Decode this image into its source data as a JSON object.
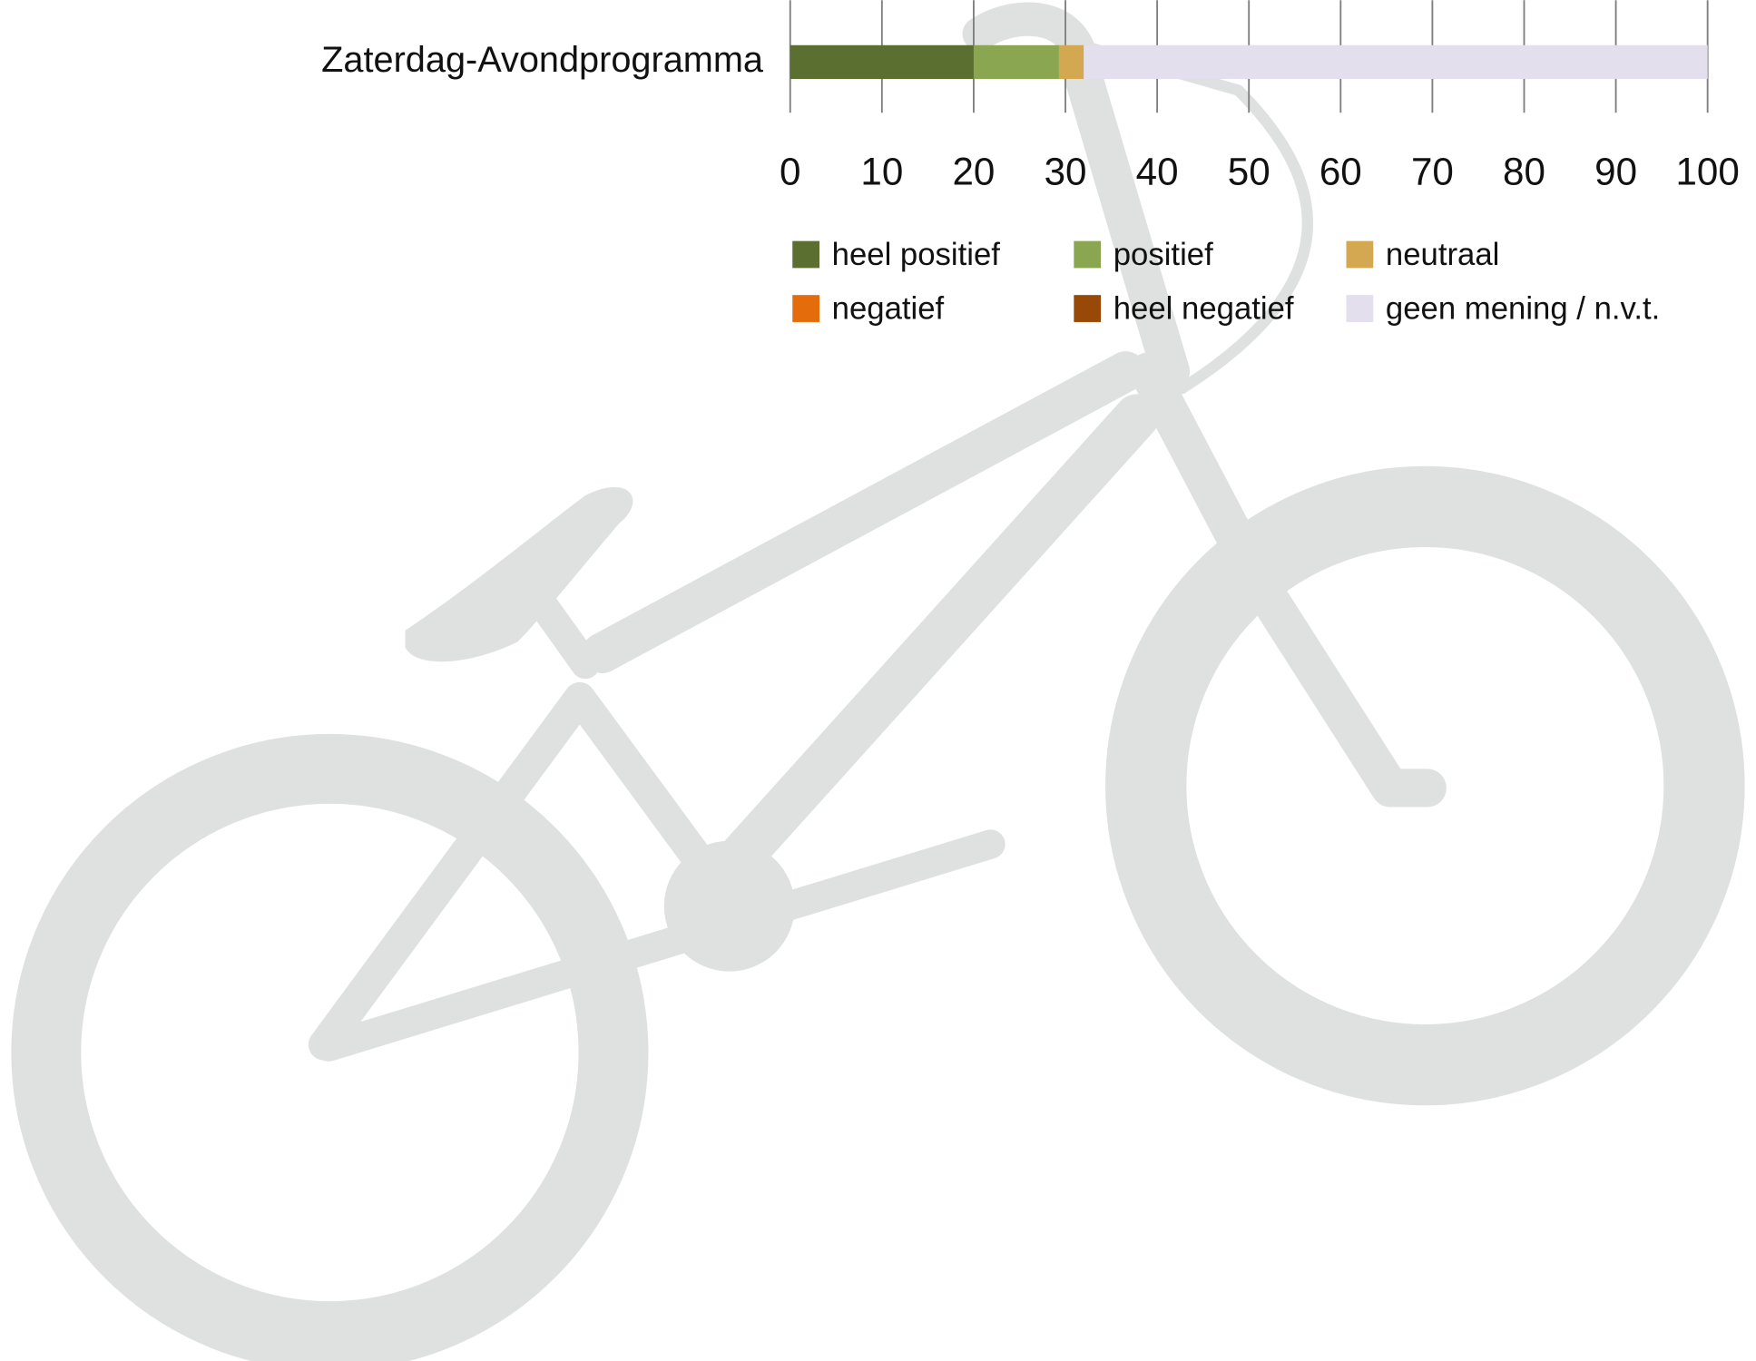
{
  "chart_data": {
    "type": "bar",
    "orientation": "horizontal",
    "stacked": true,
    "categories": [
      "Zaterdag-Avondprogramma"
    ],
    "series": [
      {
        "name": "heel positief",
        "color": "#5b7030",
        "values": [
          20
        ]
      },
      {
        "name": "positief",
        "color": "#8aa650",
        "values": [
          9.3
        ]
      },
      {
        "name": "neutraal",
        "color": "#d3a850",
        "values": [
          2.7
        ]
      },
      {
        "name": "negatief",
        "color": "#e46c0a",
        "values": [
          0
        ]
      },
      {
        "name": "heel negatief",
        "color": "#984807",
        "values": [
          0
        ]
      },
      {
        "name": "geen mening / n.v.t.",
        "color": "#e4dfec",
        "values": [
          68
        ]
      }
    ],
    "xlim": [
      0,
      100
    ],
    "xticks": [
      0,
      10,
      20,
      30,
      40,
      50,
      60,
      70,
      80,
      90,
      100
    ],
    "grid": true,
    "legend": "bottom"
  }
}
